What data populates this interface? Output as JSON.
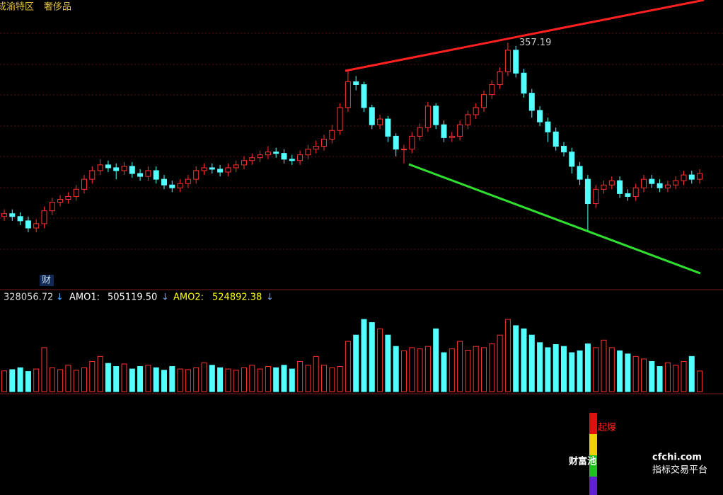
{
  "header": {
    "region": "成渝特区",
    "sector": "奢侈品"
  },
  "badge": "财",
  "signal": {
    "label": "起爆"
  },
  "watermark": {
    "brand": "财富池",
    "domain": "cfchi.com",
    "tagline": "指标交易平台"
  },
  "chart_data": [
    {
      "type": "candlestick",
      "up_color": "#ff3232",
      "down_color": "#54ffff",
      "ylim": [
        187,
        387
      ],
      "open": [
        236,
        238,
        236,
        233,
        228,
        231,
        240,
        246,
        248,
        250,
        255,
        262,
        268,
        272,
        270,
        268,
        271,
        266,
        264,
        268,
        262,
        258,
        256,
        259,
        262,
        268,
        270,
        269,
        267,
        270,
        272,
        275,
        277,
        279,
        281,
        280,
        276,
        275,
        279,
        283,
        285,
        290,
        296,
        312,
        330,
        328,
        312,
        300,
        304,
        292,
        283,
        283,
        292,
        298,
        313,
        300,
        291,
        292,
        300,
        307,
        312,
        321,
        328,
        337,
        352,
        336,
        322,
        310,
        302,
        295,
        285,
        281,
        271,
        262,
        245,
        255,
        258,
        261,
        252,
        250,
        256,
        262,
        259,
        256,
        258,
        261,
        265,
        262
      ],
      "high": [
        241,
        241,
        239,
        236,
        234,
        243,
        249,
        251,
        253,
        258,
        265,
        271,
        276,
        275,
        273,
        274,
        274,
        269,
        271,
        271,
        265,
        261,
        262,
        265,
        271,
        273,
        273,
        272,
        273,
        275,
        278,
        280,
        282,
        285,
        284,
        283,
        279,
        282,
        286,
        289,
        293,
        300,
        315,
        338,
        334,
        330,
        314,
        307,
        306,
        294,
        286,
        295,
        301,
        316,
        315,
        303,
        295,
        303,
        310,
        315,
        324,
        331,
        340,
        357.19,
        355,
        339,
        325,
        313,
        305,
        298,
        288,
        284,
        274,
        265,
        258,
        261,
        264,
        264,
        255,
        259,
        265,
        265,
        262,
        261,
        264,
        268,
        268,
        269
      ],
      "low": [
        233,
        233,
        230,
        225,
        225,
        228,
        237,
        243,
        245,
        247,
        252,
        259,
        265,
        267,
        262,
        265,
        263,
        261,
        261,
        259,
        255,
        253,
        253,
        256,
        259,
        265,
        266,
        264,
        264,
        267,
        269,
        272,
        274,
        276,
        277,
        273,
        272,
        272,
        276,
        280,
        282,
        287,
        293,
        309,
        324,
        309,
        297,
        297,
        288,
        278,
        273,
        280,
        289,
        295,
        297,
        288,
        288,
        289,
        297,
        304,
        309,
        318,
        325,
        334,
        333,
        319,
        305,
        299,
        288,
        282,
        278,
        266,
        258,
        226.5,
        242,
        252,
        255,
        249,
        247,
        247,
        253,
        256,
        253,
        253,
        255,
        258,
        259,
        259
      ],
      "close": [
        238,
        236,
        233,
        228,
        231,
        240,
        246,
        248,
        250,
        255,
        262,
        268,
        272,
        270,
        268,
        271,
        266,
        264,
        268,
        262,
        258,
        256,
        259,
        262,
        268,
        270,
        269,
        267,
        270,
        272,
        275,
        277,
        279,
        281,
        280,
        276,
        275,
        279,
        283,
        285,
        290,
        296,
        312,
        330,
        328,
        312,
        300,
        304,
        292,
        283,
        283,
        292,
        298,
        313,
        300,
        291,
        292,
        300,
        307,
        312,
        321,
        328,
        337,
        352,
        336,
        322,
        310,
        302,
        295,
        285,
        281,
        271,
        262,
        245,
        255,
        258,
        261,
        252,
        250,
        256,
        262,
        259,
        256,
        258,
        261,
        265,
        262,
        266
      ]
    },
    {
      "type": "bar",
      "ylim": [
        0,
        1500000
      ],
      "values": [
        330000,
        350000,
        380000,
        320000,
        360000,
        700000,
        380000,
        350000,
        420000,
        340000,
        380000,
        480000,
        560000,
        450000,
        400000,
        440000,
        360000,
        400000,
        420000,
        380000,
        340000,
        400000,
        360000,
        350000,
        380000,
        460000,
        420000,
        380000,
        360000,
        340000,
        380000,
        420000,
        360000,
        400000,
        380000,
        420000,
        360000,
        480000,
        420000,
        560000,
        420000,
        380000,
        400000,
        800000,
        900000,
        1150000,
        1100000,
        1000000,
        900000,
        720000,
        650000,
        700000,
        680000,
        720000,
        1000000,
        620000,
        680000,
        800000,
        660000,
        720000,
        700000,
        760000,
        900000,
        1150000,
        1050000,
        1000000,
        900000,
        780000,
        700000,
        750000,
        720000,
        620000,
        650000,
        760000,
        700000,
        820000,
        700000,
        650000,
        600000,
        560000,
        520000,
        480000,
        400000,
        460000,
        420000,
        480000,
        560000,
        328056.72
      ],
      "arrow": "↓",
      "indicators": [
        {
          "name": "AMO1:",
          "value": 505119.5,
          "label": "505119.50",
          "color": "#ffffff"
        },
        {
          "name": "AMO2:",
          "value": 524892.38,
          "label": "524892.38",
          "color": "#ffff00"
        }
      ]
    }
  ]
}
